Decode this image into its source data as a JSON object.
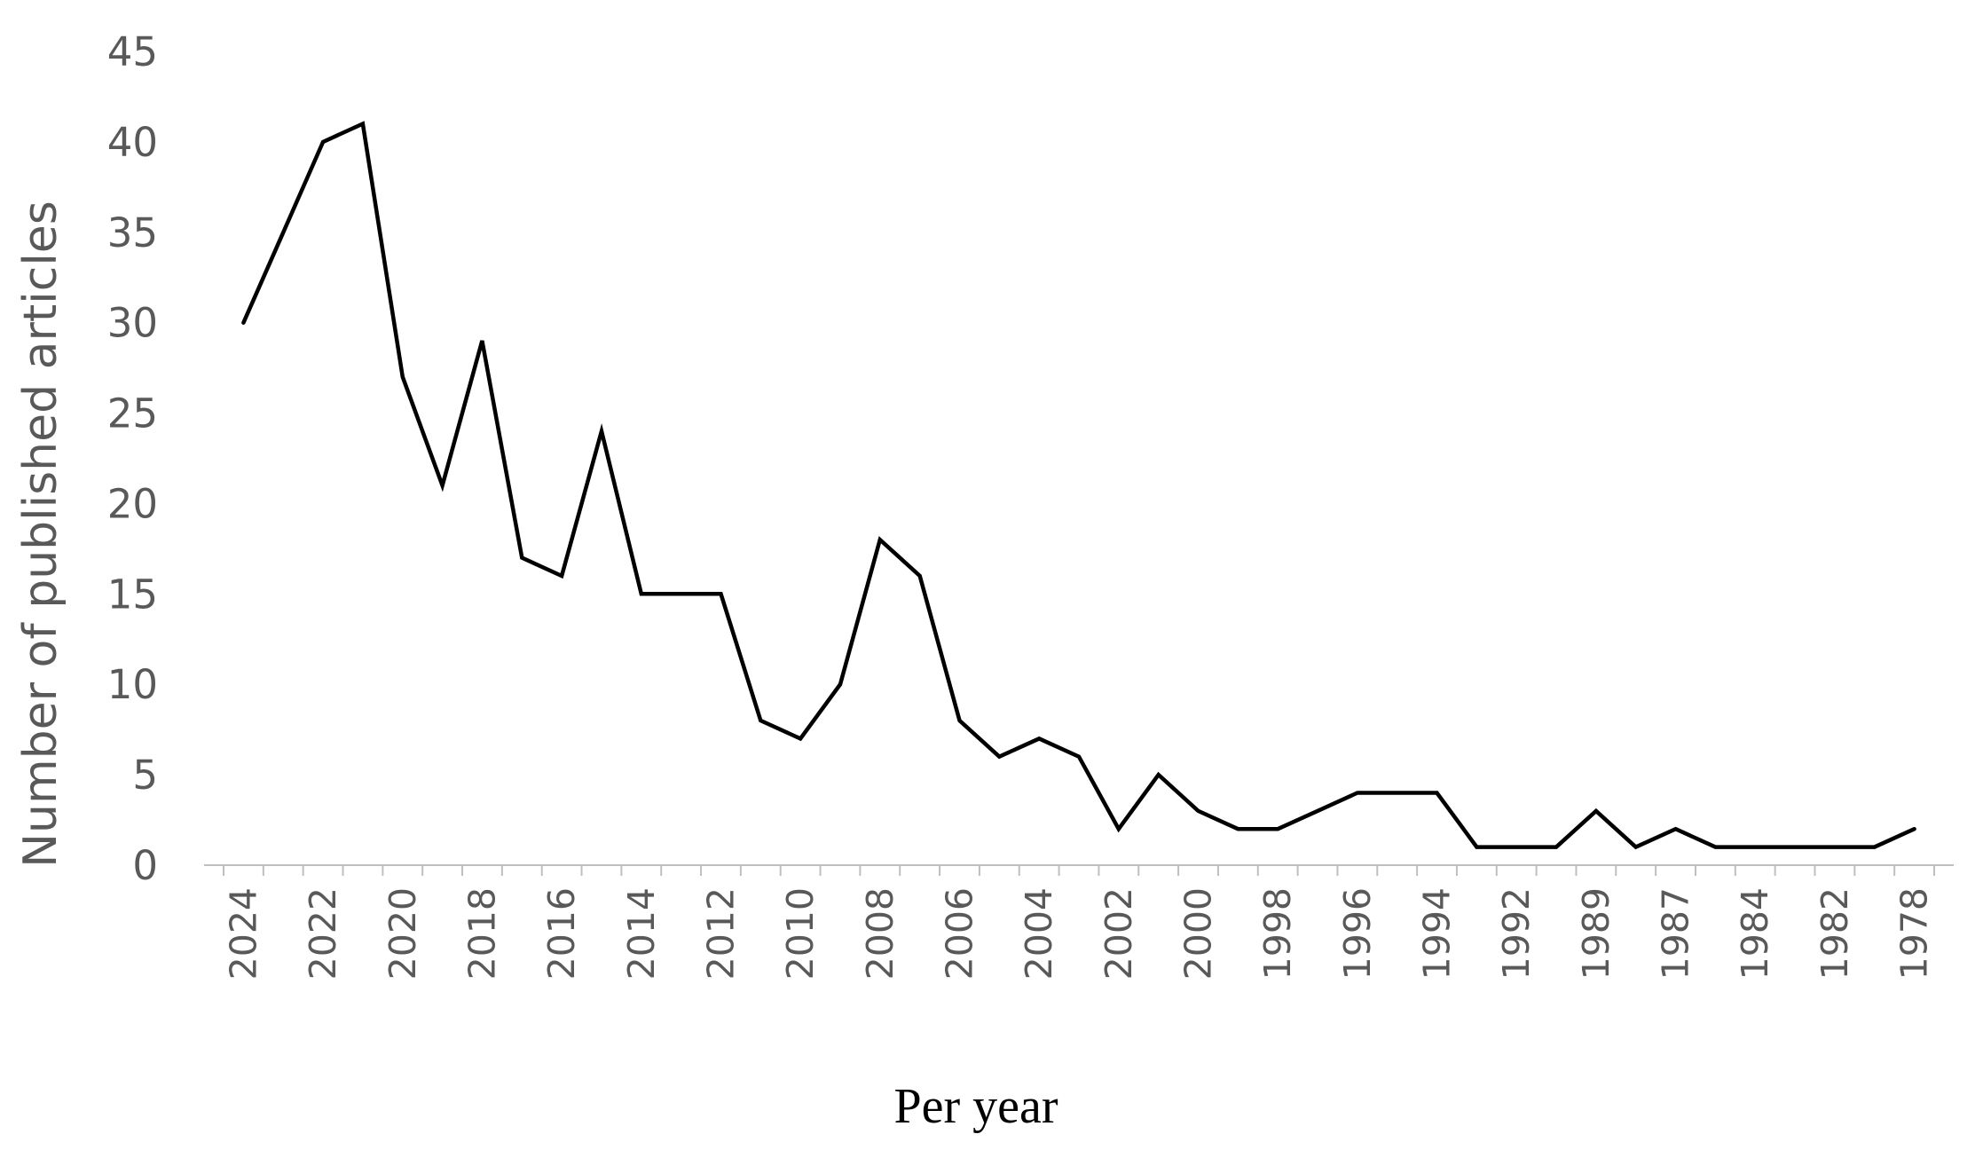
{
  "chart_data": {
    "type": "line",
    "title": "",
    "xlabel": "Per year",
    "ylabel": "Number of published articles",
    "ylim": [
      0,
      45
    ],
    "yticks": [
      "0",
      "5",
      "10",
      "15",
      "20",
      "25",
      "30",
      "35",
      "40",
      "45"
    ],
    "grid": false,
    "legend": "none",
    "line_color": "#000000",
    "x": [
      "2024",
      "2023",
      "2022",
      "2021",
      "2020",
      "2019",
      "2018",
      "2017",
      "2016",
      "2015",
      "2014",
      "2013",
      "2012",
      "2011",
      "2010",
      "2009",
      "2008",
      "2007",
      "2006",
      "2005",
      "2004",
      "2003",
      "2002",
      "2001",
      "2000",
      "1999",
      "1998",
      "1997",
      "1996",
      "1995",
      "1994",
      "1993",
      "1992",
      "1991",
      "1989",
      "1988",
      "1987",
      "1986",
      "1984",
      "1983",
      "1982",
      "1981",
      "1978"
    ],
    "xtick_labels": [
      "2024",
      "2022",
      "2020",
      "2018",
      "2016",
      "2014",
      "2012",
      "2010",
      "2008",
      "2006",
      "2004",
      "2002",
      "2000",
      "1998",
      "1996",
      "1994",
      "1992",
      "1989",
      "1987",
      "1984",
      "1982",
      "1978"
    ],
    "series": [
      {
        "values": [
          30,
          35,
          40,
          41,
          27,
          21,
          29,
          17,
          16,
          24,
          15,
          15,
          15,
          8,
          7,
          10,
          18,
          16,
          8,
          6,
          7,
          6,
          2,
          5,
          3,
          2,
          2,
          3,
          4,
          4,
          4,
          1,
          1,
          1,
          3,
          1,
          2,
          1,
          1,
          1,
          1,
          1,
          2
        ]
      }
    ]
  }
}
